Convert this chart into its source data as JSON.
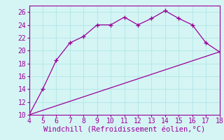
{
  "xlabel": "Windchill (Refroidissement éolien,°C)",
  "curve1_x": [
    4,
    5,
    6,
    7,
    8,
    9,
    10,
    11,
    12,
    13,
    14,
    15,
    16,
    17,
    18
  ],
  "curve1_y": [
    10,
    14,
    18.5,
    21.2,
    22.2,
    24.0,
    24.0,
    25.2,
    24.0,
    25.0,
    26.2,
    25.0,
    24.0,
    21.2,
    19.8
  ],
  "curve2_x": [
    4,
    18
  ],
  "curve2_y": [
    10,
    19.8
  ],
  "line_color": "#990099",
  "bg_color": "#d5f5f5",
  "grid_color": "#b8e8e8",
  "xlim": [
    4,
    18
  ],
  "ylim": [
    10,
    27
  ],
  "xticks": [
    4,
    5,
    6,
    7,
    8,
    9,
    10,
    11,
    12,
    13,
    14,
    15,
    16,
    17,
    18
  ],
  "yticks": [
    10,
    12,
    14,
    16,
    18,
    20,
    22,
    24,
    26
  ],
  "tick_fontsize": 7,
  "xlabel_fontsize": 7.5
}
